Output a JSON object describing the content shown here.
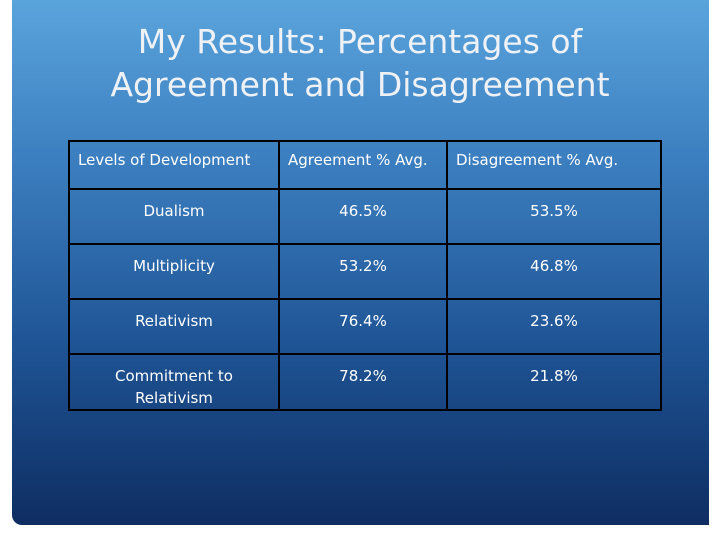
{
  "title": {
    "lines": [
      "My Results: Percentages of",
      "Agreement and Disagreement"
    ]
  },
  "table": {
    "header": [
      "Levels of Development",
      "Agreement % Avg.",
      "Disagreement % Avg."
    ],
    "rows": [
      [
        "Dualism",
        "46.5%",
        "53.5%"
      ],
      [
        "Multiplicity",
        "53.2%",
        "46.8%"
      ],
      [
        "Relativism",
        "76.4%",
        "23.6%"
      ],
      [
        "Commitment to Relativism",
        "78.2%",
        "21.8%"
      ]
    ]
  }
}
